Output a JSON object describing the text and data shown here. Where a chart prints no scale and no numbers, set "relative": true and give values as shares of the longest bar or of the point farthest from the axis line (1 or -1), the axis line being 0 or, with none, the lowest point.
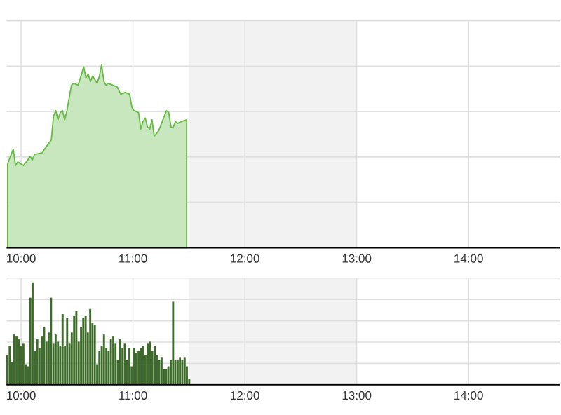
{
  "chart_data": [
    {
      "type": "area",
      "relative": true,
      "grid": true,
      "xlim": [
        9.87,
        14.82
      ],
      "xticks": [
        {
          "value": 10,
          "label": "10:00"
        },
        {
          "value": 11,
          "label": "11:00"
        },
        {
          "value": 12,
          "label": "12:00"
        },
        {
          "value": 13,
          "label": "13:00"
        },
        {
          "value": 14,
          "label": "14:00"
        }
      ],
      "bands": [
        {
          "axis": "x",
          "from": 11.5,
          "to": 13,
          "color": "#f2f2f2"
        }
      ],
      "series": [
        {
          "color": "#66bb44",
          "x": [
            9.88,
            9.93,
            9.95,
            9.97,
            10.02,
            10.06,
            10.08,
            10.1,
            10.12,
            10.19,
            10.21,
            10.27,
            10.29,
            10.31,
            10.33,
            10.35,
            10.37,
            10.39,
            10.41,
            10.45,
            10.47,
            10.51,
            10.56,
            10.58,
            10.6,
            10.62,
            10.64,
            10.68,
            10.7,
            10.72,
            10.74,
            10.76,
            10.78,
            10.82,
            10.86,
            10.89,
            10.93,
            10.97,
            10.99,
            11.01,
            11.05,
            11.07,
            11.09,
            11.11,
            11.13,
            11.15,
            11.17,
            11.19,
            11.23,
            11.28,
            11.3,
            11.32,
            11.34,
            11.36,
            11.38,
            11.4,
            11.43,
            11.48
          ],
          "values": [
            0.46,
            0.54,
            0.45,
            0.47,
            0.45,
            0.48,
            0.5,
            0.48,
            0.51,
            0.52,
            0.54,
            0.59,
            0.72,
            0.75,
            0.7,
            0.74,
            0.75,
            0.7,
            0.75,
            0.89,
            0.9,
            0.89,
            0.99,
            0.93,
            0.95,
            0.91,
            0.94,
            0.9,
            0.94,
            1.0,
            0.91,
            0.89,
            0.9,
            0.89,
            0.88,
            0.84,
            0.85,
            0.84,
            0.77,
            0.75,
            0.74,
            0.65,
            0.69,
            0.71,
            0.66,
            0.65,
            0.7,
            0.61,
            0.64,
            0.72,
            0.75,
            0.74,
            0.66,
            0.66,
            0.69,
            0.68,
            0.69,
            0.7
          ]
        }
      ]
    },
    {
      "type": "bar",
      "relative": true,
      "grid": true,
      "xlim": [
        9.87,
        14.82
      ],
      "xticks": [
        {
          "value": 10,
          "label": "10:00"
        },
        {
          "value": 11,
          "label": "11:00"
        },
        {
          "value": 12,
          "label": "12:00"
        },
        {
          "value": 13,
          "label": "13:00"
        },
        {
          "value": 14,
          "label": "14:00"
        }
      ],
      "bands": [
        {
          "axis": "x",
          "from": 11.5,
          "to": 13,
          "color": "#f2f2f2"
        }
      ],
      "series": [
        {
          "color": "#3d6b2a",
          "x": [
            9.877,
            9.898,
            9.918,
            9.939,
            9.959,
            9.98,
            10.0,
            10.021,
            10.042,
            10.062,
            10.083,
            10.103,
            10.124,
            10.145,
            10.165,
            10.186,
            10.206,
            10.227,
            10.247,
            10.268,
            10.289,
            10.309,
            10.33,
            10.35,
            10.371,
            10.392,
            10.412,
            10.433,
            10.453,
            10.474,
            10.494,
            10.515,
            10.536,
            10.556,
            10.577,
            10.597,
            10.618,
            10.638,
            10.659,
            10.68,
            10.7,
            10.721,
            10.741,
            10.762,
            10.782,
            10.803,
            10.824,
            10.844,
            10.865,
            10.885,
            10.906,
            10.927,
            10.947,
            10.968,
            10.988,
            11.009,
            11.029,
            11.05,
            11.071,
            11.091,
            11.112,
            11.132,
            11.153,
            11.173,
            11.194,
            11.215,
            11.235,
            11.256,
            11.276,
            11.297,
            11.317,
            11.338,
            11.359,
            11.379,
            11.4,
            11.42,
            11.441,
            11.462,
            11.482,
            11.503
          ],
          "values": [
            0.29,
            0.38,
            0.22,
            0.49,
            0.47,
            0.45,
            0.38,
            0.4,
            0.2,
            0.18,
            0.85,
            1.0,
            0.33,
            0.45,
            0.36,
            0.47,
            0.56,
            0.42,
            0.51,
            0.85,
            0.4,
            0.49,
            0.42,
            0.38,
            0.69,
            0.38,
            0.65,
            0.4,
            0.51,
            0.67,
            0.72,
            0.42,
            0.56,
            0.65,
            0.67,
            0.51,
            0.74,
            0.6,
            0.58,
            0.2,
            0.33,
            0.38,
            0.49,
            0.36,
            0.33,
            0.45,
            0.47,
            0.4,
            0.24,
            0.45,
            0.36,
            0.4,
            0.24,
            0.36,
            0.18,
            0.36,
            0.31,
            0.33,
            0.36,
            0.38,
            0.29,
            0.4,
            0.42,
            0.33,
            0.38,
            0.29,
            0.24,
            0.27,
            0.15,
            0.15,
            0.18,
            0.24,
            0.81,
            0.24,
            0.24,
            0.27,
            0.24,
            0.27,
            0.18,
            0.06
          ]
        }
      ]
    }
  ]
}
